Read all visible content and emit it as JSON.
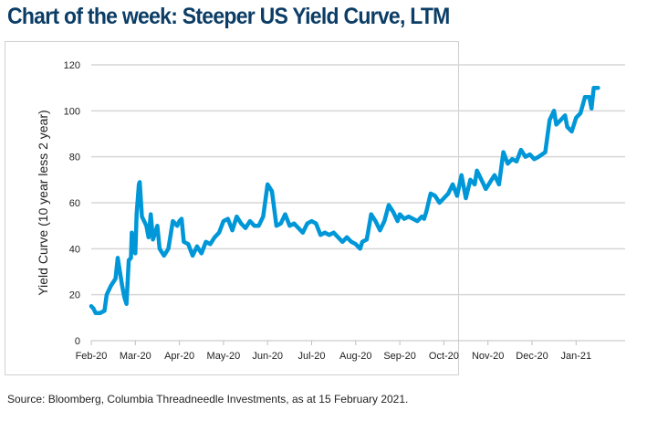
{
  "chart_data": {
    "type": "line",
    "title": "Chart of the week: Steeper US Yield Curve, LTM",
    "xlabel": "",
    "ylabel": "Yield Curve (10 year less 2 year)",
    "ylim": [
      0,
      120
    ],
    "yticks": [
      0,
      20,
      40,
      60,
      80,
      100,
      120
    ],
    "xticks": [
      "Feb-20",
      "Mar-20",
      "Apr-20",
      "May-20",
      "Jun-20",
      "Jul-20",
      "Aug-20",
      "Sep-20",
      "Oct-20",
      "Nov-20",
      "Dec-20",
      "Jan-21"
    ],
    "grid": true,
    "line_color": "#0097d8",
    "series": [
      {
        "name": "Yield Curve",
        "x_months_since_feb20": [
          0,
          0.05,
          0.1,
          0.2,
          0.3,
          0.35,
          0.45,
          0.55,
          0.6,
          0.7,
          0.75,
          0.8,
          0.85,
          0.9,
          0.92,
          0.95,
          1.0,
          1.03,
          1.08,
          1.1,
          1.15,
          1.25,
          1.3,
          1.35,
          1.4,
          1.5,
          1.55,
          1.65,
          1.75,
          1.85,
          1.95,
          2.0,
          2.05,
          2.1,
          2.2,
          2.3,
          2.4,
          2.5,
          2.6,
          2.7,
          2.8,
          2.9,
          3.0,
          3.1,
          3.2,
          3.3,
          3.4,
          3.5,
          3.6,
          3.7,
          3.8,
          3.9,
          4.0,
          4.1,
          4.2,
          4.3,
          4.4,
          4.5,
          4.6,
          4.7,
          4.8,
          4.9,
          5.0,
          5.1,
          5.2,
          5.3,
          5.4,
          5.5,
          5.6,
          5.7,
          5.8,
          5.9,
          6.0,
          6.1,
          6.15,
          6.25,
          6.35,
          6.45,
          6.55,
          6.65,
          6.75,
          6.85,
          6.95,
          7.0,
          7.1,
          7.2,
          7.3,
          7.4,
          7.5,
          7.55,
          7.6,
          7.7,
          7.8,
          7.9,
          8.0,
          8.1,
          8.2,
          8.3,
          8.4,
          8.5,
          8.6,
          8.7,
          8.75,
          8.85,
          8.95,
          9.05,
          9.15,
          9.25,
          9.35,
          9.45,
          9.55,
          9.65,
          9.75,
          9.85,
          9.95,
          10.05,
          10.15,
          10.3,
          10.4,
          10.5,
          10.55,
          10.65,
          10.75,
          10.8,
          10.9,
          11.0,
          11.1,
          11.2,
          11.3,
          11.35,
          11.4,
          11.5
        ],
        "values": [
          15,
          14,
          12,
          12,
          13,
          20,
          24,
          27,
          36,
          24,
          19,
          16,
          35,
          36,
          47,
          40,
          38,
          55,
          68,
          69,
          54,
          50,
          45,
          55,
          44,
          50,
          40,
          37,
          40,
          52,
          50,
          52,
          53,
          43,
          42,
          37,
          41,
          38,
          43,
          42,
          45,
          47,
          52,
          53,
          48,
          54,
          51,
          49,
          52,
          50,
          50,
          54,
          68,
          65,
          50,
          51,
          55,
          50,
          51,
          49,
          47,
          51,
          52,
          51,
          46,
          47,
          46,
          47,
          45,
          43,
          45,
          43,
          42,
          40,
          43,
          44,
          55,
          52,
          48,
          52,
          59,
          56,
          52,
          55,
          53,
          54,
          53,
          52,
          54,
          53,
          56,
          64,
          63,
          60,
          62,
          64,
          68,
          63,
          72,
          62,
          70,
          68,
          74,
          70,
          66,
          69,
          72,
          68,
          82,
          77,
          79,
          78,
          83,
          80,
          81,
          79,
          80,
          82,
          96,
          100,
          94,
          96,
          98,
          93,
          91,
          97,
          99,
          106,
          106,
          101,
          110,
          110
        ]
      }
    ]
  },
  "source": "Source: Bloomberg, Columbia Threadneedle Investments, as at 15 February 2021."
}
